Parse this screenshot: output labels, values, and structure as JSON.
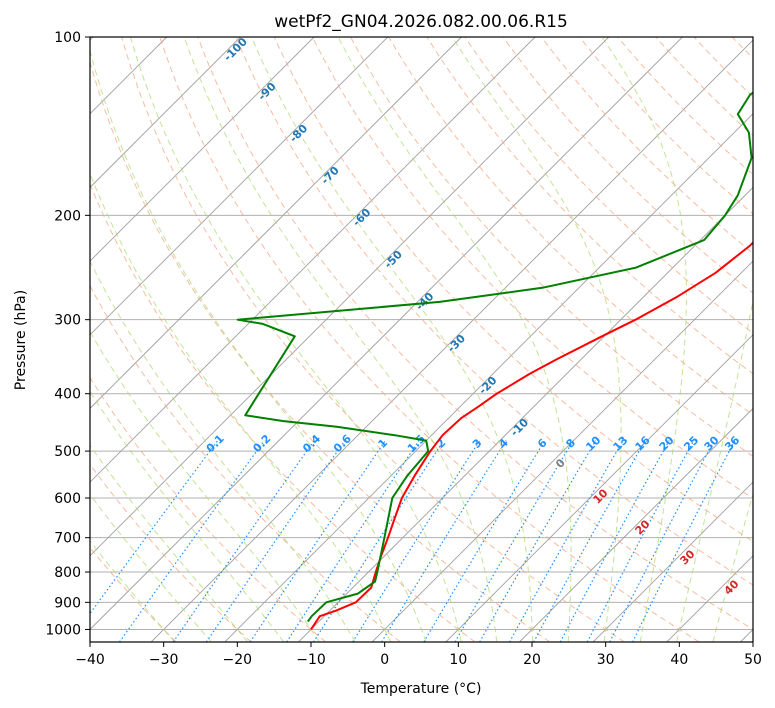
{
  "chart_data": {
    "type": "line",
    "title": "wetPf2_GN04.2026.082.00.06.R15",
    "xlabel": "Temperature (°C)",
    "ylabel": "Pressure (hPa)",
    "xlim": [
      -40,
      50
    ],
    "ylim": [
      1050,
      100
    ],
    "y_scale": "log",
    "x_ticks": [
      -40,
      -30,
      -20,
      -10,
      0,
      10,
      20,
      30,
      40,
      50
    ],
    "y_ticks": [
      100,
      200,
      300,
      400,
      500,
      600,
      700,
      800,
      900,
      1000
    ],
    "grid": true,
    "skew": "skew-T log-P",
    "series": [
      {
        "color": "#ff0000",
        "points": [
          {
            "p": 1000,
            "t": -10.0
          },
          {
            "p": 975,
            "t": -10.3
          },
          {
            "p": 950,
            "t": -10.6
          },
          {
            "p": 930,
            "t": -9.2
          },
          {
            "p": 900,
            "t": -7.6
          },
          {
            "p": 850,
            "t": -7.5
          },
          {
            "p": 800,
            "t": -9.0
          },
          {
            "p": 750,
            "t": -10.5
          },
          {
            "p": 700,
            "t": -12.0
          },
          {
            "p": 650,
            "t": -13.7
          },
          {
            "p": 600,
            "t": -15.5
          },
          {
            "p": 550,
            "t": -16.8
          },
          {
            "p": 500,
            "t": -18.0
          },
          {
            "p": 470,
            "t": -18.5
          },
          {
            "p": 440,
            "t": -18.3
          },
          {
            "p": 420,
            "t": -17.5
          },
          {
            "p": 400,
            "t": -16.8
          },
          {
            "p": 370,
            "t": -15.0
          },
          {
            "p": 350,
            "t": -13.3
          },
          {
            "p": 320,
            "t": -10.3
          },
          {
            "p": 300,
            "t": -8.0
          },
          {
            "p": 275,
            "t": -5.5
          },
          {
            "p": 250,
            "t": -3.5
          },
          {
            "p": 225,
            "t": -2.5
          },
          {
            "p": 200,
            "t": -2.5
          },
          {
            "p": 180,
            "t": -3.5
          },
          {
            "p": 160,
            "t": -5.0
          },
          {
            "p": 140,
            "t": -8.0
          },
          {
            "p": 125,
            "t": -11.0
          },
          {
            "p": 110,
            "t": -14.5
          },
          {
            "p": 100,
            "t": -17.0
          }
        ]
      },
      {
        "color": "#008000",
        "points": [
          {
            "p": 970,
            "t": -11.5
          },
          {
            "p": 950,
            "t": -11.7
          },
          {
            "p": 900,
            "t": -11.6
          },
          {
            "p": 870,
            "t": -8.5
          },
          {
            "p": 830,
            "t": -7.8
          },
          {
            "p": 800,
            "t": -8.8
          },
          {
            "p": 700,
            "t": -12.5
          },
          {
            "p": 600,
            "t": -16.8
          },
          {
            "p": 550,
            "t": -17.8
          },
          {
            "p": 500,
            "t": -18.3
          },
          {
            "p": 480,
            "t": -20.0
          },
          {
            "p": 470,
            "t": -25.0
          },
          {
            "p": 455,
            "t": -34.0
          },
          {
            "p": 445,
            "t": -42.0
          },
          {
            "p": 435,
            "t": -48.0
          },
          {
            "p": 320,
            "t": -52.0
          },
          {
            "p": 305,
            "t": -58.0
          },
          {
            "p": 300,
            "t": -62.0
          },
          {
            "p": 280,
            "t": -37.0
          },
          {
            "p": 265,
            "t": -25.0
          },
          {
            "p": 245,
            "t": -15.0
          },
          {
            "p": 220,
            "t": -9.5
          },
          {
            "p": 200,
            "t": -10.0
          },
          {
            "p": 185,
            "t": -11.0
          },
          {
            "p": 160,
            "t": -14.2
          },
          {
            "p": 145,
            "t": -18.0
          },
          {
            "p": 135,
            "t": -22.0
          },
          {
            "p": 125,
            "t": -23.0
          },
          {
            "p": 115,
            "t": -21.0
          },
          {
            "p": 105,
            "t": -17.5
          },
          {
            "p": 100,
            "t": -15.6
          }
        ]
      }
    ],
    "dry_adiabat_labels": [
      "-100",
      "-90",
      "-80",
      "-70",
      "-60",
      "-50",
      "-40",
      "-30",
      "-20",
      "-10"
    ],
    "mixing_ratio_labels": [
      "0.1",
      "0.2",
      "0.4",
      "0.6",
      "1",
      "1.5",
      "2",
      "3",
      "4",
      "6",
      "8",
      "10",
      "13",
      "16",
      "20",
      "25",
      "30",
      "36"
    ],
    "moist_adiabat_labels": [
      "0",
      "10",
      "20",
      "30",
      "40"
    ],
    "colors": {
      "temperature": "#ff0000",
      "dewpoint": "#008000",
      "isobar_grid": "#b0b0b0",
      "isotherm": "#a0a0a0",
      "dry_adiabat": "#f4a582",
      "moist_adiabat": "#a6d96a",
      "mixing_ratio": "#1e90ff",
      "dry_adiabat_label": "#1f77b4",
      "mixing_ratio_label": "#1e90ff",
      "moist_adiabat_label": "#d62728",
      "moist_adiabat_label_zero": "#808080"
    }
  }
}
